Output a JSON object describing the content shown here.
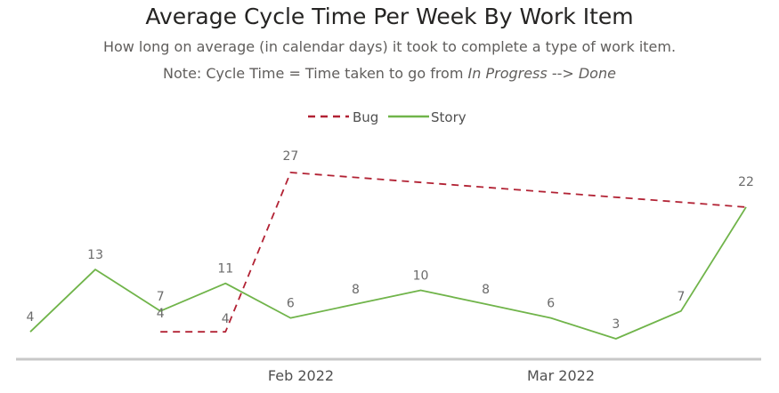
{
  "chart_data": {
    "type": "line",
    "title": "Average Cycle Time Per Week By Work Item",
    "subtitle": "How long on average (in calendar days) it took to complete a type of work item.",
    "note": {
      "prefix": "Note: Cycle Time = Time taken to go from ",
      "from": "In Progress",
      "arrow": " --> ",
      "to": "Done"
    },
    "x_ticks": [
      "Feb 2022",
      "Mar 2022"
    ],
    "series": [
      {
        "name": "Bug",
        "color": "#b22234",
        "dash": "dashed",
        "points": [
          {
            "week": 3,
            "value": 4
          },
          {
            "week": 4,
            "value": 4
          },
          {
            "week": 5,
            "value": 27
          },
          {
            "week": 12,
            "value": 22
          }
        ]
      },
      {
        "name": "Story",
        "color": "#70b44a",
        "dash": "solid",
        "points": [
          {
            "week": 1,
            "value": 4
          },
          {
            "week": 2,
            "value": 13
          },
          {
            "week": 3,
            "value": 7
          },
          {
            "week": 4,
            "value": 11
          },
          {
            "week": 5,
            "value": 6
          },
          {
            "week": 6,
            "value": 8
          },
          {
            "week": 7,
            "value": 10
          },
          {
            "week": 8,
            "value": 8
          },
          {
            "week": 9,
            "value": 6
          },
          {
            "week": 10,
            "value": 3
          },
          {
            "week": 11,
            "value": 7
          },
          {
            "week": 12,
            "value": 22
          }
        ]
      }
    ],
    "legend_position": "top-center",
    "grid": false
  }
}
